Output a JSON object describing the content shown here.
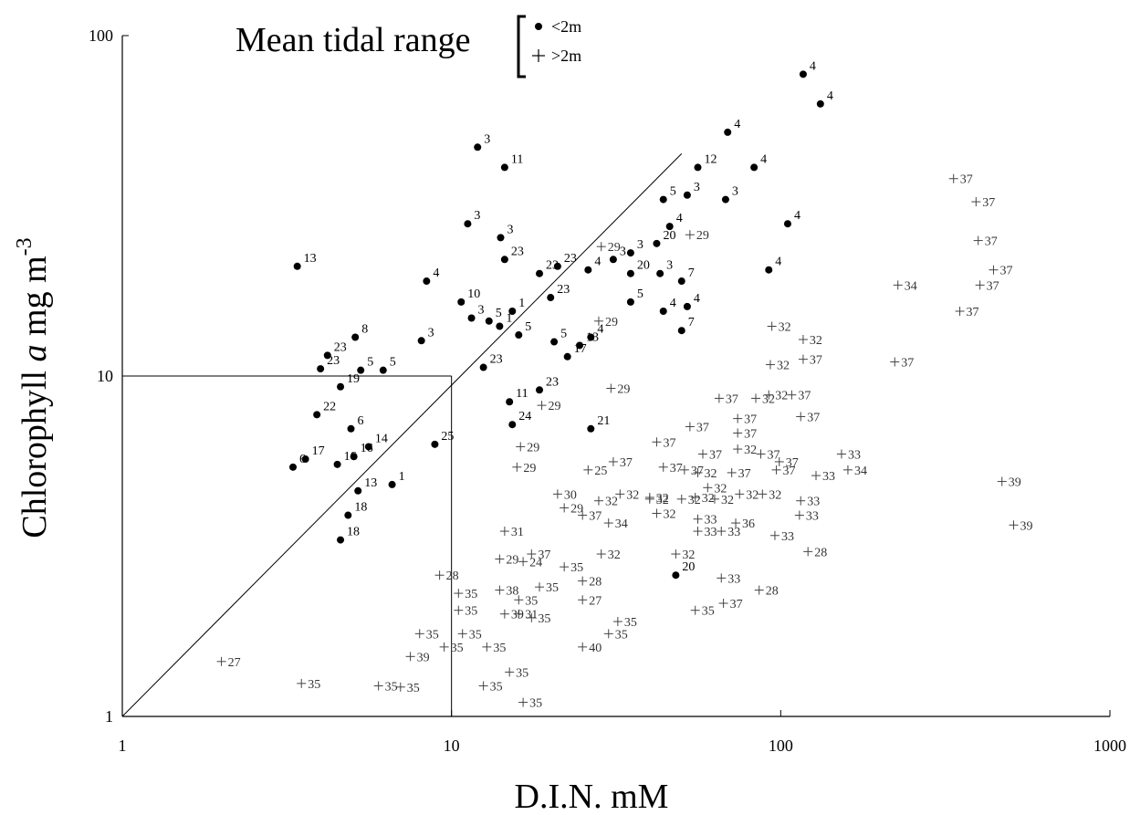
{
  "chart_data": {
    "type": "scatter",
    "title": "",
    "xlabel": "D.I.N. mM",
    "ylabel_main": "Chlorophyll",
    "ylabel_var": "a",
    "ylabel_unit": " mg m",
    "ylabel_exp": "-3",
    "xscale": "log",
    "yscale": "log",
    "xlim": [
      1,
      1000
    ],
    "ylim": [
      1,
      100
    ],
    "x_ticks": [
      {
        "value": 1,
        "label": "1"
      },
      {
        "value": 10,
        "label": "10"
      },
      {
        "value": 100,
        "label": "100"
      },
      {
        "value": 1000,
        "label": "1000"
      }
    ],
    "y_ticks": [
      {
        "value": 1,
        "label": "1"
      },
      {
        "value": 10,
        "label": "10"
      },
      {
        "value": 100,
        "label": "100"
      }
    ],
    "grid": false,
    "legend": {
      "title": "Mean tidal range",
      "placement": "top-left",
      "entries": [
        {
          "marker": "dot",
          "label": "<2m"
        },
        {
          "marker": "plus",
          "label": ">2m"
        }
      ]
    },
    "reference_lines": [
      {
        "kind": "diagonal",
        "from": [
          1,
          1
        ],
        "to": [
          50,
          45
        ]
      },
      {
        "kind": "horizontal",
        "from": [
          1,
          10
        ],
        "to": [
          10,
          10
        ]
      },
      {
        "kind": "vertical",
        "from": [
          10,
          1
        ],
        "to": [
          10,
          10
        ]
      }
    ],
    "series": [
      {
        "name": "<2m",
        "marker": "dot",
        "points": [
          {
            "x": 117,
            "y": 77,
            "label": "4"
          },
          {
            "x": 132,
            "y": 63,
            "label": "4"
          },
          {
            "x": 12,
            "y": 47,
            "label": "3"
          },
          {
            "x": 14.5,
            "y": 41,
            "label": "11"
          },
          {
            "x": 69,
            "y": 52,
            "label": "4"
          },
          {
            "x": 56,
            "y": 41,
            "label": "12"
          },
          {
            "x": 83,
            "y": 41,
            "label": "4"
          },
          {
            "x": 44,
            "y": 33,
            "label": "5"
          },
          {
            "x": 52,
            "y": 34,
            "label": "3"
          },
          {
            "x": 68,
            "y": 33,
            "label": "3"
          },
          {
            "x": 11.2,
            "y": 28,
            "label": "3"
          },
          {
            "x": 14.1,
            "y": 25.5,
            "label": "3"
          },
          {
            "x": 46,
            "y": 27.5,
            "label": "4"
          },
          {
            "x": 105,
            "y": 28,
            "label": "4"
          },
          {
            "x": 42,
            "y": 24.5,
            "label": "20"
          },
          {
            "x": 35,
            "y": 23,
            "label": "3"
          },
          {
            "x": 14.5,
            "y": 22,
            "label": "23"
          },
          {
            "x": 21,
            "y": 21,
            "label": "23"
          },
          {
            "x": 31,
            "y": 22,
            "label": "3"
          },
          {
            "x": 3.4,
            "y": 21,
            "label": "13"
          },
          {
            "x": 8.4,
            "y": 19,
            "label": "4"
          },
          {
            "x": 18.5,
            "y": 20,
            "label": "23"
          },
          {
            "x": 26,
            "y": 20.5,
            "label": "4"
          },
          {
            "x": 35,
            "y": 20,
            "label": "20"
          },
          {
            "x": 43,
            "y": 20,
            "label": "3"
          },
          {
            "x": 50,
            "y": 19,
            "label": "7"
          },
          {
            "x": 92,
            "y": 20.5,
            "label": "4"
          },
          {
            "x": 20,
            "y": 17,
            "label": "23"
          },
          {
            "x": 10.7,
            "y": 16.5,
            "label": "10"
          },
          {
            "x": 35,
            "y": 16.5,
            "label": "5"
          },
          {
            "x": 52,
            "y": 16,
            "label": "4"
          },
          {
            "x": 15.3,
            "y": 15.5,
            "label": "1"
          },
          {
            "x": 13,
            "y": 14.5,
            "label": "5"
          },
          {
            "x": 11.5,
            "y": 14.8,
            "label": "3"
          },
          {
            "x": 14,
            "y": 14,
            "label": "1"
          },
          {
            "x": 44,
            "y": 15.5,
            "label": "4"
          },
          {
            "x": 5.1,
            "y": 13,
            "label": "8"
          },
          {
            "x": 8.1,
            "y": 12.7,
            "label": "3"
          },
          {
            "x": 16,
            "y": 13.2,
            "label": "5"
          },
          {
            "x": 20.5,
            "y": 12.6,
            "label": "5"
          },
          {
            "x": 26.5,
            "y": 13,
            "label": "4"
          },
          {
            "x": 24.5,
            "y": 12.3,
            "label": "13"
          },
          {
            "x": 50,
            "y": 13.6,
            "label": "7"
          },
          {
            "x": 4.2,
            "y": 11.5,
            "label": "23"
          },
          {
            "x": 22.5,
            "y": 11.4,
            "label": "17"
          },
          {
            "x": 4.0,
            "y": 10.5,
            "label": "23"
          },
          {
            "x": 5.3,
            "y": 10.4,
            "label": "5"
          },
          {
            "x": 6.2,
            "y": 10.4,
            "label": "5"
          },
          {
            "x": 12.5,
            "y": 10.6,
            "label": "23"
          },
          {
            "x": 4.6,
            "y": 9.3,
            "label": "19"
          },
          {
            "x": 18.5,
            "y": 9.1,
            "label": "23"
          },
          {
            "x": 15,
            "y": 8.4,
            "label": "11"
          },
          {
            "x": 3.9,
            "y": 7.7,
            "label": "22"
          },
          {
            "x": 4.95,
            "y": 7.0,
            "label": "6"
          },
          {
            "x": 15.3,
            "y": 7.2,
            "label": "24"
          },
          {
            "x": 26.5,
            "y": 7.0,
            "label": "21"
          },
          {
            "x": 5.6,
            "y": 6.2,
            "label": "14"
          },
          {
            "x": 8.9,
            "y": 6.3,
            "label": "25"
          },
          {
            "x": 3.6,
            "y": 5.7,
            "label": "17"
          },
          {
            "x": 3.3,
            "y": 5.4,
            "label": "6"
          },
          {
            "x": 5.05,
            "y": 5.8,
            "label": "16"
          },
          {
            "x": 4.5,
            "y": 5.5,
            "label": "16"
          },
          {
            "x": 6.6,
            "y": 4.8,
            "label": "1"
          },
          {
            "x": 5.2,
            "y": 4.6,
            "label": "13"
          },
          {
            "x": 4.85,
            "y": 3.9,
            "label": "18"
          },
          {
            "x": 4.6,
            "y": 3.3,
            "label": "18"
          },
          {
            "x": 48,
            "y": 2.6,
            "label": "20"
          }
        ]
      },
      {
        "name": ">2m",
        "marker": "plus",
        "points": [
          {
            "x": 335,
            "y": 38,
            "label": "37"
          },
          {
            "x": 392,
            "y": 32.5,
            "label": "37"
          },
          {
            "x": 398,
            "y": 25,
            "label": "37"
          },
          {
            "x": 443,
            "y": 20.5,
            "label": "37"
          },
          {
            "x": 403,
            "y": 18.5,
            "label": "37"
          },
          {
            "x": 350,
            "y": 15.5,
            "label": "37"
          },
          {
            "x": 227,
            "y": 18.5,
            "label": "34"
          },
          {
            "x": 222,
            "y": 11,
            "label": "37"
          },
          {
            "x": 94,
            "y": 14,
            "label": "32"
          },
          {
            "x": 117,
            "y": 12.8,
            "label": "32"
          },
          {
            "x": 93,
            "y": 10.8,
            "label": "32"
          },
          {
            "x": 117,
            "y": 11.2,
            "label": "37"
          },
          {
            "x": 53,
            "y": 26,
            "label": "29"
          },
          {
            "x": 28.5,
            "y": 24,
            "label": "29"
          },
          {
            "x": 28,
            "y": 14.5,
            "label": "29"
          },
          {
            "x": 30.5,
            "y": 9.2,
            "label": "29"
          },
          {
            "x": 18.8,
            "y": 8.2,
            "label": "29"
          },
          {
            "x": 16.2,
            "y": 6.2,
            "label": "29"
          },
          {
            "x": 15.8,
            "y": 5.4,
            "label": "29"
          },
          {
            "x": 65,
            "y": 8.6,
            "label": "37"
          },
          {
            "x": 84,
            "y": 8.6,
            "label": "32"
          },
          {
            "x": 92,
            "y": 8.8,
            "label": "32"
          },
          {
            "x": 108,
            "y": 8.8,
            "label": "37"
          },
          {
            "x": 115,
            "y": 7.6,
            "label": "37"
          },
          {
            "x": 53,
            "y": 7.1,
            "label": "37"
          },
          {
            "x": 74,
            "y": 7.5,
            "label": "37"
          },
          {
            "x": 74,
            "y": 6.8,
            "label": "37"
          },
          {
            "x": 42,
            "y": 6.4,
            "label": "37"
          },
          {
            "x": 74,
            "y": 6.1,
            "label": "32"
          },
          {
            "x": 87,
            "y": 5.9,
            "label": "37"
          },
          {
            "x": 99,
            "y": 5.6,
            "label": "37"
          },
          {
            "x": 58,
            "y": 5.9,
            "label": "37"
          },
          {
            "x": 153,
            "y": 5.9,
            "label": "33"
          },
          {
            "x": 160,
            "y": 5.3,
            "label": "34"
          },
          {
            "x": 31,
            "y": 5.6,
            "label": "37"
          },
          {
            "x": 44,
            "y": 5.4,
            "label": "37"
          },
          {
            "x": 51,
            "y": 5.3,
            "label": "37"
          },
          {
            "x": 56,
            "y": 5.2,
            "label": "32"
          },
          {
            "x": 71,
            "y": 5.2,
            "label": "37"
          },
          {
            "x": 97,
            "y": 5.3,
            "label": "37"
          },
          {
            "x": 128,
            "y": 5.1,
            "label": "33"
          },
          {
            "x": 26,
            "y": 5.3,
            "label": "25"
          },
          {
            "x": 60,
            "y": 4.7,
            "label": "32"
          },
          {
            "x": 40,
            "y": 4.4,
            "label": "32"
          },
          {
            "x": 32.5,
            "y": 4.5,
            "label": "32"
          },
          {
            "x": 40,
            "y": 4.35,
            "label": "32"
          },
          {
            "x": 50,
            "y": 4.35,
            "label": "32"
          },
          {
            "x": 63,
            "y": 4.35,
            "label": "32"
          },
          {
            "x": 75,
            "y": 4.5,
            "label": "32"
          },
          {
            "x": 28,
            "y": 4.3,
            "label": "32"
          },
          {
            "x": 21,
            "y": 4.5,
            "label": "30"
          },
          {
            "x": 22,
            "y": 4.1,
            "label": "29"
          },
          {
            "x": 55,
            "y": 4.4,
            "label": "32"
          },
          {
            "x": 115,
            "y": 4.3,
            "label": "33"
          },
          {
            "x": 88,
            "y": 4.5,
            "label": "32"
          },
          {
            "x": 114,
            "y": 3.9,
            "label": "33"
          },
          {
            "x": 25,
            "y": 3.9,
            "label": "37"
          },
          {
            "x": 42,
            "y": 3.95,
            "label": "32"
          },
          {
            "x": 56,
            "y": 3.8,
            "label": "33"
          },
          {
            "x": 73,
            "y": 3.7,
            "label": "36"
          },
          {
            "x": 30,
            "y": 3.7,
            "label": "34"
          },
          {
            "x": 56,
            "y": 3.5,
            "label": "33"
          },
          {
            "x": 66,
            "y": 3.5,
            "label": "33"
          },
          {
            "x": 96,
            "y": 3.4,
            "label": "33"
          },
          {
            "x": 14.5,
            "y": 3.5,
            "label": "31"
          },
          {
            "x": 17.5,
            "y": 3.0,
            "label": "37"
          },
          {
            "x": 16.5,
            "y": 2.85,
            "label": "24"
          },
          {
            "x": 14,
            "y": 2.9,
            "label": "29"
          },
          {
            "x": 22,
            "y": 2.75,
            "label": "35"
          },
          {
            "x": 28.5,
            "y": 3.0,
            "label": "32"
          },
          {
            "x": 48,
            "y": 3.0,
            "label": "32"
          },
          {
            "x": 121,
            "y": 3.05,
            "label": "28"
          },
          {
            "x": 9.2,
            "y": 2.6,
            "label": "28"
          },
          {
            "x": 18.5,
            "y": 2.4,
            "label": "35"
          },
          {
            "x": 25,
            "y": 2.5,
            "label": "28"
          },
          {
            "x": 66,
            "y": 2.55,
            "label": "33"
          },
          {
            "x": 86,
            "y": 2.35,
            "label": "28"
          },
          {
            "x": 14,
            "y": 2.35,
            "label": "38"
          },
          {
            "x": 10.5,
            "y": 2.3,
            "label": "35"
          },
          {
            "x": 16,
            "y": 2.2,
            "label": "35"
          },
          {
            "x": 25,
            "y": 2.2,
            "label": "27"
          },
          {
            "x": 10.5,
            "y": 2.05,
            "label": "35"
          },
          {
            "x": 14.5,
            "y": 2.0,
            "label": "39"
          },
          {
            "x": 16,
            "y": 2.0,
            "label": "31"
          },
          {
            "x": 17.5,
            "y": 1.95,
            "label": "35"
          },
          {
            "x": 55,
            "y": 2.05,
            "label": "35"
          },
          {
            "x": 67,
            "y": 2.15,
            "label": "37"
          },
          {
            "x": 10.8,
            "y": 1.75,
            "label": "35"
          },
          {
            "x": 30,
            "y": 1.75,
            "label": "35"
          },
          {
            "x": 32,
            "y": 1.9,
            "label": "35"
          },
          {
            "x": 8.0,
            "y": 1.75,
            "label": "35"
          },
          {
            "x": 9.5,
            "y": 1.6,
            "label": "35"
          },
          {
            "x": 12.8,
            "y": 1.6,
            "label": "35"
          },
          {
            "x": 25,
            "y": 1.6,
            "label": "40"
          },
          {
            "x": 7.5,
            "y": 1.5,
            "label": "39"
          },
          {
            "x": 2.0,
            "y": 1.45,
            "label": "27"
          },
          {
            "x": 15,
            "y": 1.35,
            "label": "35"
          },
          {
            "x": 3.5,
            "y": 1.25,
            "label": "35"
          },
          {
            "x": 6.0,
            "y": 1.23,
            "label": "35"
          },
          {
            "x": 7.0,
            "y": 1.22,
            "label": "35"
          },
          {
            "x": 12.5,
            "y": 1.23,
            "label": "35"
          },
          {
            "x": 16.5,
            "y": 1.1,
            "label": "35"
          },
          {
            "x": 470,
            "y": 4.9,
            "label": "39"
          },
          {
            "x": 510,
            "y": 3.65,
            "label": "39"
          }
        ]
      }
    ]
  }
}
